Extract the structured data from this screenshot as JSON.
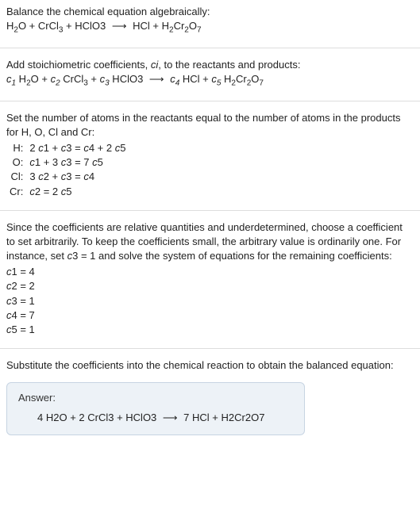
{
  "colors": {
    "text": "#222222",
    "divider": "#dddddd",
    "answer_bg": "#edf2f7",
    "answer_border": "#c7d4e2"
  },
  "step1": {
    "title": "Balance the chemical equation algebraically:",
    "reactants": [
      {
        "formula": "H_2O"
      },
      {
        "formula": "CrCl_3"
      },
      {
        "formula": "HClO3"
      }
    ],
    "products": [
      {
        "formula": "HCl"
      },
      {
        "formula": "H_2Cr_2O_7"
      }
    ]
  },
  "step2": {
    "line1a": "Add stoichiometric coefficients, ",
    "var": "c",
    "sub": "i",
    "line1b": ", to the reactants and products:",
    "terms_lhs": [
      {
        "coef": "c_1",
        "formula": "H_2O"
      },
      {
        "coef": "c_2",
        "formula": "CrCl_3"
      },
      {
        "coef": "c_3",
        "formula": "HClO3"
      }
    ],
    "terms_rhs": [
      {
        "coef": "c_4",
        "formula": "HCl"
      },
      {
        "coef": "c_5",
        "formula": "H_2Cr_2O_7"
      }
    ]
  },
  "step3": {
    "intro": "Set the number of atoms in the reactants equal to the number of atoms in the products for H, O, Cl and Cr:",
    "rows": [
      {
        "label": "H:",
        "eq": "2 c_1 + c_3 = c_4 + 2 c_5"
      },
      {
        "label": "O:",
        "eq": "c_1 + 3 c_3 = 7 c_5"
      },
      {
        "label": "Cl:",
        "eq": "3 c_2 + c_3 = c_4"
      },
      {
        "label": "Cr:",
        "eq": "c_2 = 2 c_5"
      }
    ]
  },
  "step4": {
    "para": "Since the coefficients are relative quantities and underdetermined, choose a coefficient to set arbitrarily. To keep the coefficients small, the arbitrary value is ordinarily one. For instance, set c_3 = 1 and solve the system of equations for the remaining coefficients:",
    "coeffs": [
      "c_1 = 4",
      "c_2 = 2",
      "c_3 = 1",
      "c_4 = 7",
      "c_5 = 1"
    ]
  },
  "step5": {
    "para": "Substitute the coefficients into the chemical reaction to obtain the balanced equation:"
  },
  "answer": {
    "label": "Answer:",
    "lhs": [
      {
        "coef": "4",
        "formula": "H_2O"
      },
      {
        "coef": "2",
        "formula": "CrCl_3"
      },
      {
        "coef": "",
        "formula": "HClO3"
      }
    ],
    "rhs": [
      {
        "coef": "7",
        "formula": "HCl"
      },
      {
        "coef": "",
        "formula": "H_2Cr_2O_7"
      }
    ]
  },
  "arrow": "⟶"
}
